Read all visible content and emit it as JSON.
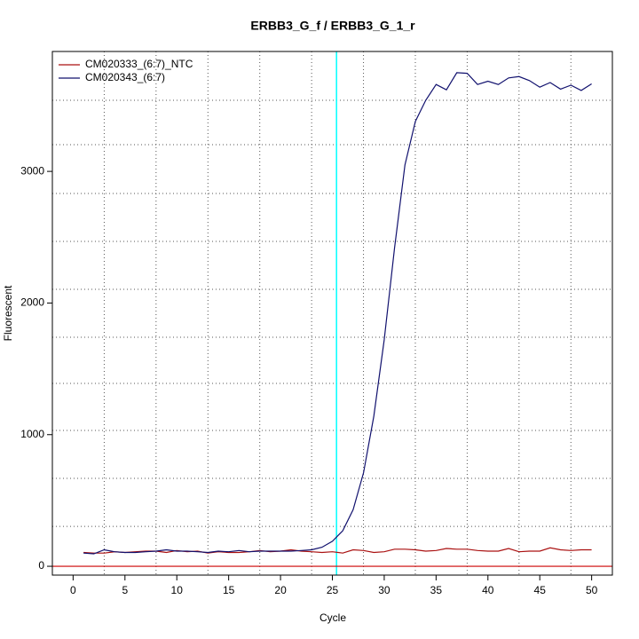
{
  "chart_data": {
    "type": "line",
    "title": "ERBB3_G_f / ERBB3_G_1_r",
    "x_label": "Cycle",
    "y_label": "Fluorescent",
    "x": [
      1,
      2,
      3,
      4,
      5,
      6,
      7,
      8,
      9,
      10,
      11,
      12,
      13,
      14,
      15,
      16,
      17,
      18,
      19,
      20,
      21,
      22,
      23,
      24,
      25,
      26,
      27,
      28,
      29,
      30,
      31,
      32,
      33,
      34,
      35,
      36,
      37,
      38,
      39,
      40,
      41,
      42,
      43,
      44,
      45,
      46,
      47,
      48,
      49,
      50
    ],
    "series": [
      {
        "name": "CM020333_(6:7)_NTC",
        "color": "#aa1111",
        "values": [
          105,
          100,
          100,
          110,
          105,
          110,
          115,
          115,
          105,
          120,
          110,
          115,
          100,
          110,
          105,
          105,
          110,
          120,
          110,
          115,
          125,
          115,
          110,
          105,
          110,
          100,
          125,
          120,
          105,
          110,
          130,
          130,
          125,
          115,
          120,
          135,
          130,
          130,
          120,
          115,
          115,
          135,
          110,
          115,
          115,
          140,
          125,
          120,
          125,
          125
        ]
      },
      {
        "name": "CM020343_(6:7)",
        "color": "#11116e",
        "values": [
          100,
          95,
          125,
          110,
          105,
          105,
          110,
          115,
          125,
          115,
          115,
          110,
          105,
          115,
          110,
          120,
          110,
          115,
          115,
          115,
          115,
          120,
          125,
          145,
          190,
          270,
          430,
          710,
          1140,
          1720,
          2420,
          3050,
          3380,
          3540,
          3660,
          3620,
          3750,
          3745,
          3660,
          3685,
          3660,
          3710,
          3720,
          3690,
          3640,
          3675,
          3625,
          3655,
          3615,
          3665
        ]
      }
    ],
    "xlim": [
      -2,
      52
    ],
    "ylim": [
      -67,
      3911
    ],
    "xticks": [
      0,
      5,
      10,
      15,
      20,
      25,
      30,
      35,
      40,
      45,
      50
    ],
    "yticks": [
      0,
      1000,
      2000,
      3000
    ],
    "xgrid": [
      3,
      8,
      13,
      18,
      23,
      28,
      33,
      38,
      43,
      48
    ],
    "ygrid": [
      303,
      668,
      1032,
      1389,
      1740,
      2104,
      2468,
      2832,
      3203,
      3540
    ],
    "hlines": [
      {
        "value": 0,
        "color": "#cc0000"
      }
    ],
    "vlines": [
      {
        "value": 25.4,
        "color": "#00ffff"
      }
    ],
    "legend": "topleft"
  }
}
